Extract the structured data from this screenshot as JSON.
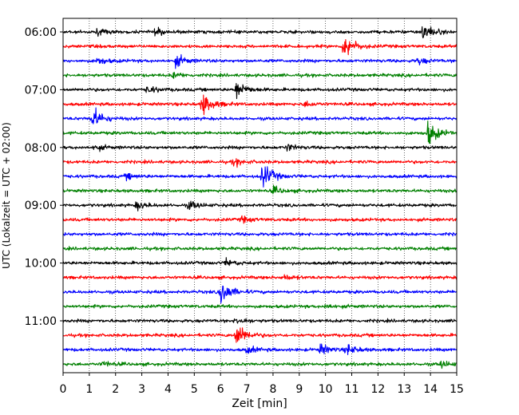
{
  "chart_data": {
    "type": "line",
    "title": "",
    "xlabel": "Zeit  [min]",
    "ylabel": "UTC (Lokalzeit = UTC + 02:00)",
    "xlim": [
      0,
      15
    ],
    "x_ticks": [
      "0",
      "1",
      "2",
      "3",
      "4",
      "5",
      "6",
      "7",
      "8",
      "9",
      "10",
      "11",
      "12",
      "13",
      "14",
      "15"
    ],
    "y_ticks": [
      "06:00",
      "07:00",
      "08:00",
      "09:00",
      "10:00",
      "11:00"
    ],
    "trace_interval_min": 15,
    "trace_colors": [
      "#000000",
      "#ff0000",
      "#0000ff",
      "#008000"
    ],
    "grid": "vertical dotted",
    "traces": [
      {
        "start": "06:00",
        "color": "#000000",
        "events": [
          {
            "t": 13.7,
            "amp": 1.4
          },
          {
            "t": 3.5,
            "amp": 0.5
          },
          {
            "t": 1.3,
            "amp": 0.4
          }
        ]
      },
      {
        "start": "06:15",
        "color": "#ff0000",
        "events": [
          {
            "t": 10.7,
            "amp": 2.2
          }
        ]
      },
      {
        "start": "06:30",
        "color": "#0000ff",
        "events": [
          {
            "t": 4.3,
            "amp": 0.9
          },
          {
            "t": 1.3,
            "amp": 0.5
          },
          {
            "t": 13.5,
            "amp": 0.5
          }
        ]
      },
      {
        "start": "06:45",
        "color": "#008000",
        "events": [
          {
            "t": 4.2,
            "amp": 0.4
          }
        ]
      },
      {
        "start": "07:00",
        "color": "#000000",
        "events": [
          {
            "t": 6.6,
            "amp": 1.4
          },
          {
            "t": 3.2,
            "amp": 0.5
          }
        ]
      },
      {
        "start": "07:15",
        "color": "#ff0000",
        "events": [
          {
            "t": 5.3,
            "amp": 1.8
          },
          {
            "t": 9.2,
            "amp": 0.4
          }
        ]
      },
      {
        "start": "07:30",
        "color": "#0000ff",
        "events": [
          {
            "t": 1.1,
            "amp": 1.8
          }
        ]
      },
      {
        "start": "07:45",
        "color": "#008000",
        "events": [
          {
            "t": 13.9,
            "amp": 1.8
          }
        ]
      },
      {
        "start": "08:00",
        "color": "#000000",
        "events": [
          {
            "t": 8.5,
            "amp": 0.5
          },
          {
            "t": 1.2,
            "amp": 0.4
          }
        ]
      },
      {
        "start": "08:15",
        "color": "#ff0000",
        "events": [
          {
            "t": 6.5,
            "amp": 0.5
          }
        ]
      },
      {
        "start": "08:30",
        "color": "#0000ff",
        "events": [
          {
            "t": 7.6,
            "amp": 2.0
          },
          {
            "t": 2.4,
            "amp": 0.4
          }
        ]
      },
      {
        "start": "08:45",
        "color": "#008000",
        "events": [
          {
            "t": 8.0,
            "amp": 0.5
          }
        ]
      },
      {
        "start": "09:00",
        "color": "#000000",
        "events": [
          {
            "t": 2.8,
            "amp": 0.6
          },
          {
            "t": 4.8,
            "amp": 0.6
          }
        ]
      },
      {
        "start": "09:15",
        "color": "#ff0000",
        "events": [
          {
            "t": 6.8,
            "amp": 0.4
          }
        ]
      },
      {
        "start": "09:30",
        "color": "#0000ff",
        "events": []
      },
      {
        "start": "09:45",
        "color": "#008000",
        "events": []
      },
      {
        "start": "10:00",
        "color": "#000000",
        "events": [
          {
            "t": 6.2,
            "amp": 0.5
          }
        ]
      },
      {
        "start": "10:15",
        "color": "#ff0000",
        "events": [
          {
            "t": 8.4,
            "amp": 0.4
          }
        ]
      },
      {
        "start": "10:30",
        "color": "#0000ff",
        "events": [
          {
            "t": 6.0,
            "amp": 2.0
          }
        ]
      },
      {
        "start": "10:45",
        "color": "#008000",
        "events": [
          {
            "t": 10.0,
            "amp": 0.3
          }
        ]
      },
      {
        "start": "11:00",
        "color": "#000000",
        "events": [
          {
            "t": 6.6,
            "amp": 0.5
          }
        ]
      },
      {
        "start": "11:15",
        "color": "#ff0000",
        "events": [
          {
            "t": 6.6,
            "amp": 2.0
          }
        ]
      },
      {
        "start": "11:30",
        "color": "#0000ff",
        "events": [
          {
            "t": 10.8,
            "amp": 0.8
          },
          {
            "t": 9.8,
            "amp": 0.8
          },
          {
            "t": 7.0,
            "amp": 0.5
          }
        ]
      },
      {
        "start": "11:45",
        "color": "#008000",
        "events": [
          {
            "t": 14.4,
            "amp": 0.5
          },
          {
            "t": 1.5,
            "amp": 0.4
          }
        ]
      }
    ]
  }
}
